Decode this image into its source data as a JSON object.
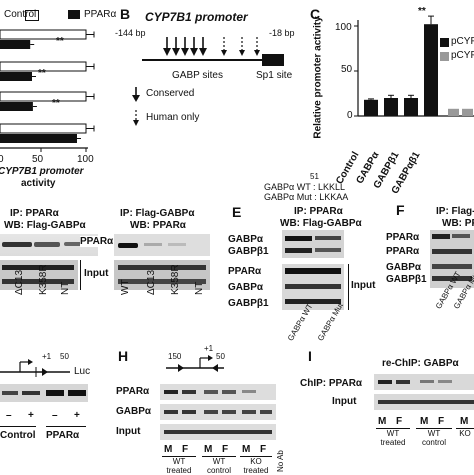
{
  "panels": {
    "A": {
      "legend": {
        "control": "Control",
        "ppara": "PPARα"
      },
      "xaxis_title_1": "CYP7B1 promoter",
      "xaxis_title_2": "activity",
      "xticks": [
        "0",
        "50",
        "100"
      ],
      "stars": [
        "**",
        "**",
        "**"
      ]
    },
    "B": {
      "letter": "B",
      "title": "CYP7B1 promoter",
      "left_bp": "-144 bp",
      "right_bp": "-18 bp",
      "gabp_sites": "GABP sites",
      "sp1_site": "Sp1 site",
      "conserved": "Conserved",
      "human_only": "Human only"
    },
    "C": {
      "letter": "C",
      "ylabel": "Relative promoter activity",
      "yticks": [
        "0",
        "50",
        "100"
      ],
      "legend": [
        "pCYP",
        "pCYP"
      ],
      "stars": "**"
    },
    "D": {
      "left_title_1": "IP: PPARα",
      "left_title_2": "WB: Flag-GABPα",
      "right_title_1": "IP: Flag-GABPα",
      "right_title_2": "WB: PPARα",
      "ppara_label": "PPARα",
      "input_label": "Input",
      "left_lanes": [
        "ΔC13",
        "K358R",
        "NT"
      ],
      "right_lanes": [
        "WT",
        "ΔC13",
        "K358R",
        "NT"
      ]
    },
    "E": {
      "letter": "E",
      "seq_number": "51",
      "seq_wt_label": "GABPα  WT : LKKLL",
      "seq_mut_label": "GABPα  Mut : LKKAA",
      "title_1": "IP: PPARα",
      "title_2": "WB: Flag-GABPα",
      "rows": [
        "GABPα",
        "GABPβ1",
        "PPARα",
        "GABPα",
        "GABPβ1"
      ],
      "input_label": "Input",
      "lanes": [
        "GABPα WT",
        "GABPα Mut"
      ]
    },
    "F": {
      "letter": "F",
      "title_1": "IP: Flag-G",
      "title_2": "WB: PP",
      "rows": [
        "PPARα",
        "PPARα",
        "GABPα",
        "GABPβ1"
      ],
      "lanes": [
        "GABPα WT",
        "GABPα Mut"
      ]
    },
    "G": {
      "marker_pos": "+1",
      "marker_50": "50",
      "luc": "Luc",
      "signs": [
        "–",
        "+",
        "–",
        "+"
      ],
      "group_control": "Control",
      "group_ppara": "PPARα"
    },
    "H": {
      "letter": "H",
      "marker_150": "150",
      "marker_pos": "+1",
      "marker_50": "50",
      "rows": [
        "PPARα",
        "GABPα",
        "Input"
      ],
      "lanes": [
        "M",
        "F",
        "M",
        "F",
        "M",
        "F",
        "No Ab"
      ],
      "groups": [
        "WT treated",
        "WT control",
        "KO treated"
      ]
    },
    "I": {
      "letter": "I",
      "title": "re-ChIP: GABPα",
      "rows": [
        "ChIP: PPARα",
        "Input"
      ],
      "lanes": [
        "M",
        "F",
        "M",
        "F",
        "M"
      ],
      "groups": [
        "WT treated",
        "WT control",
        "KO"
      ]
    }
  },
  "chart_data": [
    {
      "type": "bar",
      "orientation": "horizontal",
      "panel": "A",
      "xlabel": "CYP7B1 promoter activity",
      "xlim": [
        0,
        100
      ],
      "series": [
        {
          "name": "Control",
          "values": [
            100,
            100,
            100,
            100
          ]
        },
        {
          "name": "PPARα",
          "values": [
            38,
            40,
            41,
            90
          ]
        }
      ]
    },
    {
      "type": "bar",
      "panel": "C",
      "ylabel": "Relative promoter activity",
      "ylim": [
        0,
        115
      ],
      "categories": [
        "Control",
        "GABPα",
        "GABPβ1",
        "GABPαβ1"
      ],
      "values": [
        18,
        20,
        20,
        102
      ],
      "errors": [
        1,
        3,
        3,
        9
      ],
      "extra_values": [
        8,
        8
      ]
    }
  ]
}
